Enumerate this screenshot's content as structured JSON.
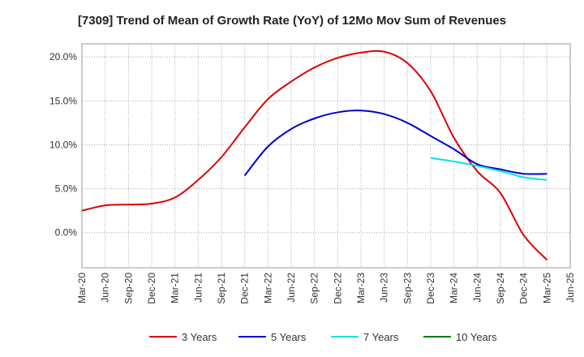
{
  "chart_data": {
    "type": "line",
    "title": "[7309]  Trend of Mean of Growth Rate (YoY) of 12Mo Mov Sum of Revenues",
    "xlabel": "",
    "ylabel": "",
    "x": [
      "Mar-20",
      "Jun-20",
      "Sep-20",
      "Dec-20",
      "Mar-21",
      "Jun-21",
      "Sep-21",
      "Dec-21",
      "Mar-22",
      "Jun-22",
      "Sep-22",
      "Dec-22",
      "Mar-23",
      "Jun-23",
      "Sep-23",
      "Dec-23",
      "Mar-24",
      "Jun-24",
      "Sep-24",
      "Dec-24",
      "Mar-25",
      "Jun-25"
    ],
    "ylim": [
      -4.0,
      21.5
    ],
    "yticks": [
      0,
      5,
      10,
      15,
      20
    ],
    "ytick_labels": [
      "0.0%",
      "5.0%",
      "10.0%",
      "15.0%",
      "20.0%"
    ],
    "grid": true,
    "legend_position": "bottom",
    "series": [
      {
        "name": "3 Years",
        "color": "#dd0000",
        "values": [
          2.5,
          3.1,
          3.2,
          3.3,
          4.0,
          6.0,
          8.6,
          12.0,
          15.2,
          17.2,
          18.8,
          19.9,
          20.5,
          20.6,
          19.3,
          16.1,
          10.8,
          7.0,
          4.5,
          -0.3,
          -3.1,
          null
        ]
      },
      {
        "name": "5 Years",
        "color": "#0000cc",
        "values": [
          null,
          null,
          null,
          null,
          null,
          null,
          null,
          6.5,
          9.8,
          11.8,
          13.0,
          13.7,
          13.9,
          13.5,
          12.5,
          11.0,
          9.5,
          7.8,
          7.2,
          6.7,
          6.7,
          null
        ]
      },
      {
        "name": "7 Years",
        "color": "#00e5ee",
        "values": [
          null,
          null,
          null,
          null,
          null,
          null,
          null,
          null,
          null,
          null,
          null,
          null,
          null,
          null,
          null,
          8.5,
          8.1,
          7.6,
          7.0,
          6.3,
          6.0,
          null
        ]
      },
      {
        "name": "10 Years",
        "color": "#008000",
        "values": [
          null,
          null,
          null,
          null,
          null,
          null,
          null,
          null,
          null,
          null,
          null,
          null,
          null,
          null,
          null,
          null,
          null,
          null,
          null,
          null,
          null,
          null
        ]
      }
    ]
  }
}
